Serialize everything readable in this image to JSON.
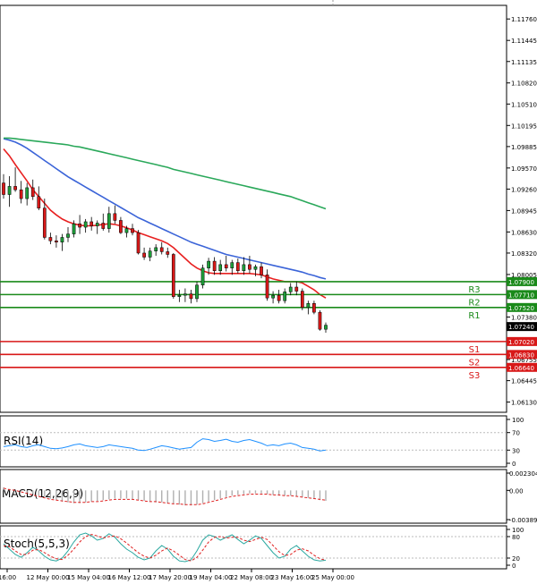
{
  "chart_data": {
    "type": "candlestick",
    "price_axis": {
      "ticks": [
        "1.11760",
        "1.11445",
        "1.11135",
        "1.10820",
        "1.10510",
        "1.10195",
        "1.09885",
        "1.09570",
        "1.09260",
        "1.08945",
        "1.08630",
        "1.08320",
        "1.08005",
        "1.07380",
        "1.06755",
        "1.06445",
        "1.06130"
      ],
      "tick_values": [
        1.1176,
        1.11445,
        1.11135,
        1.1082,
        1.1051,
        1.10195,
        1.09885,
        1.0957,
        1.0926,
        1.08945,
        1.0863,
        1.0832,
        1.08005,
        1.0738,
        1.06755,
        1.06445,
        1.0613
      ],
      "range": [
        1.0598,
        1.1196
      ]
    },
    "time_axis": {
      "labels": [
        "16:00",
        "12 May 00:00",
        "15 May 04:00",
        "16 May 12:00",
        "17 May 20:00",
        "19 May 04:00",
        "22 May 08:00",
        "23 May 16:00",
        "25 May 00:00"
      ]
    },
    "levels": [
      {
        "name": "R3",
        "value": 1.079,
        "label": "1.07900",
        "color": "#1a8a1a"
      },
      {
        "name": "R2",
        "value": 1.0771,
        "label": "1.07710",
        "color": "#1a8a1a"
      },
      {
        "name": "R1",
        "value": 1.0752,
        "label": "1.07520",
        "color": "#1a8a1a"
      },
      {
        "name": "S1",
        "value": 1.0702,
        "label": "1.07020",
        "color": "#d81818"
      },
      {
        "name": "S2",
        "value": 1.0683,
        "label": "1.06830",
        "color": "#d81818"
      },
      {
        "name": "S3",
        "value": 1.0664,
        "label": "1.06640",
        "color": "#d81818"
      }
    ],
    "current_price": {
      "value": 1.0724,
      "label": "1.07240"
    },
    "candles": [
      [
        1.0935,
        1.0948,
        1.0912,
        1.0918
      ],
      [
        1.0918,
        1.0945,
        1.09,
        1.093
      ],
      [
        1.093,
        1.0958,
        1.0922,
        1.0925
      ],
      [
        1.0925,
        1.0938,
        1.0905,
        1.0912
      ],
      [
        1.0912,
        1.0935,
        1.0902,
        1.0928
      ],
      [
        1.0928,
        1.094,
        1.091,
        1.0915
      ],
      [
        1.0915,
        1.093,
        1.0895,
        1.0898
      ],
      [
        1.0898,
        1.0912,
        1.0852,
        1.0855
      ],
      [
        1.0855,
        1.0862,
        1.0845,
        1.085
      ],
      [
        1.085,
        1.0858,
        1.084,
        1.0848
      ],
      [
        1.0848,
        1.086,
        1.0835,
        1.0855
      ],
      [
        1.0855,
        1.087,
        1.0848,
        1.086
      ],
      [
        1.086,
        1.088,
        1.0855,
        1.0875
      ],
      [
        1.0875,
        1.0888,
        1.086,
        1.087
      ],
      [
        1.087,
        1.0882,
        1.0862,
        1.0878
      ],
      [
        1.0878,
        1.0885,
        1.0865,
        1.0872
      ],
      [
        1.0872,
        1.088,
        1.086,
        1.0876
      ],
      [
        1.0876,
        1.089,
        1.0865,
        1.0868
      ],
      [
        1.0868,
        1.09,
        1.0862,
        1.089
      ],
      [
        1.089,
        1.0902,
        1.0875,
        1.088
      ],
      [
        1.088,
        1.0885,
        1.086,
        1.0862
      ],
      [
        1.0862,
        1.0872,
        1.0855,
        1.0868
      ],
      [
        1.0868,
        1.0875,
        1.0858,
        1.0862
      ],
      [
        1.0862,
        1.0866,
        1.083,
        1.0832
      ],
      [
        1.0832,
        1.084,
        1.0822,
        1.0826
      ],
      [
        1.0826,
        1.084,
        1.082,
        1.0835
      ],
      [
        1.0835,
        1.0845,
        1.0828,
        1.084
      ],
      [
        1.084,
        1.0848,
        1.083,
        1.0834
      ],
      [
        1.0834,
        1.084,
        1.0825,
        1.083
      ],
      [
        1.083,
        1.0832,
        1.0765,
        1.0768
      ],
      [
        1.0768,
        1.0778,
        1.076,
        1.077
      ],
      [
        1.077,
        1.078,
        1.076,
        1.0772
      ],
      [
        1.0772,
        1.0778,
        1.0758,
        1.0765
      ],
      [
        1.0765,
        1.079,
        1.076,
        1.0785
      ],
      [
        1.0785,
        1.0815,
        1.078,
        1.081
      ],
      [
        1.081,
        1.0825,
        1.08,
        1.082
      ],
      [
        1.082,
        1.0826,
        1.08,
        1.0806
      ],
      [
        1.0806,
        1.0822,
        1.08,
        1.0815
      ],
      [
        1.0815,
        1.0828,
        1.0805,
        1.081
      ],
      [
        1.081,
        1.0822,
        1.08,
        1.0818
      ],
      [
        1.0818,
        1.0824,
        1.0802,
        1.0806
      ],
      [
        1.0806,
        1.0826,
        1.08,
        1.0815
      ],
      [
        1.0815,
        1.0828,
        1.0802,
        1.0808
      ],
      [
        1.0808,
        1.0815,
        1.0798,
        1.0812
      ],
      [
        1.0812,
        1.0818,
        1.0795,
        1.08
      ],
      [
        1.08,
        1.0808,
        1.0762,
        1.0766
      ],
      [
        1.0766,
        1.0776,
        1.0758,
        1.077
      ],
      [
        1.077,
        1.0778,
        1.0758,
        1.0762
      ],
      [
        1.0762,
        1.078,
        1.0758,
        1.0775
      ],
      [
        1.0775,
        1.0788,
        1.077,
        1.0782
      ],
      [
        1.0782,
        1.079,
        1.077,
        1.0776
      ],
      [
        1.0776,
        1.078,
        1.0748,
        1.0752
      ],
      [
        1.0752,
        1.0762,
        1.0742,
        1.0758
      ],
      [
        1.0758,
        1.0762,
        1.0742,
        1.0745
      ],
      [
        1.0745,
        1.0748,
        1.0718,
        1.072
      ],
      [
        1.072,
        1.073,
        1.0715,
        1.0726
      ]
    ],
    "moving_averages": [
      {
        "color": "#e82020",
        "values": [
          1.0985,
          1.0975,
          1.0962,
          1.095,
          1.0938,
          1.0925,
          1.0915,
          1.0905,
          1.0895,
          1.0888,
          1.0882,
          1.0878,
          1.0875,
          1.0873,
          1.0872,
          1.0872,
          1.0873,
          1.0874,
          1.0875,
          1.0874,
          1.0872,
          1.0869,
          1.0866,
          1.0862,
          1.0859,
          1.0856,
          1.0853,
          1.085,
          1.0846,
          1.084,
          1.0832,
          1.0824,
          1.0816,
          1.081,
          1.0806,
          1.0803,
          1.0802,
          1.0802,
          1.0802,
          1.0802,
          1.0802,
          1.0802,
          1.0802,
          1.0801,
          1.08,
          1.0797,
          1.0794,
          1.0792,
          1.079,
          1.079,
          1.079,
          1.0788,
          1.0783,
          1.0778,
          1.0771,
          1.0766
        ]
      },
      {
        "color": "#3b64d8",
        "values": [
          1.1,
          1.0998,
          1.0995,
          1.0991,
          1.0986,
          1.098,
          1.0974,
          1.0968,
          1.0962,
          1.0956,
          1.095,
          1.0944,
          1.0939,
          1.0934,
          1.0929,
          1.0924,
          1.0919,
          1.0914,
          1.0909,
          1.0904,
          1.0899,
          1.0894,
          1.0889,
          1.0884,
          1.088,
          1.0876,
          1.0872,
          1.0868,
          1.0864,
          1.086,
          1.0856,
          1.0852,
          1.0848,
          1.0845,
          1.0842,
          1.0839,
          1.0836,
          1.0833,
          1.083,
          1.0828,
          1.0826,
          1.0824,
          1.0822,
          1.082,
          1.0818,
          1.0816,
          1.0814,
          1.0812,
          1.081,
          1.0808,
          1.0806,
          1.0804,
          1.0801,
          1.0799,
          1.0796,
          1.0794
        ]
      },
      {
        "color": "#2aa85a",
        "values": [
          1.1001,
          1.1001,
          1.1,
          1.0999,
          1.0998,
          1.0997,
          1.0996,
          1.0995,
          1.0994,
          1.0993,
          1.0992,
          1.0991,
          1.0989,
          1.0988,
          1.0986,
          1.0984,
          1.0982,
          1.098,
          1.0978,
          1.0976,
          1.0974,
          1.0972,
          1.097,
          1.0968,
          1.0966,
          1.0964,
          1.0962,
          1.096,
          1.0958,
          1.0955,
          1.0953,
          1.0951,
          1.0949,
          1.0947,
          1.0945,
          1.0943,
          1.0941,
          1.0939,
          1.0937,
          1.0935,
          1.0933,
          1.0931,
          1.0929,
          1.0927,
          1.0925,
          1.0923,
          1.0921,
          1.0919,
          1.0917,
          1.0915,
          1.0912,
          1.0909,
          1.0906,
          1.0903,
          1.09,
          1.0897
        ]
      }
    ],
    "rsi": {
      "label": "RSI(14)",
      "ticks": [
        "100",
        "70",
        "30",
        "0"
      ],
      "tick_values": [
        100,
        70,
        30,
        0
      ],
      "values": [
        38,
        40,
        42,
        38,
        36,
        40,
        42,
        38,
        34,
        33,
        35,
        38,
        42,
        44,
        40,
        38,
        36,
        38,
        42,
        40,
        38,
        36,
        34,
        30,
        29,
        32,
        36,
        40,
        38,
        35,
        32,
        34,
        36,
        48,
        56,
        54,
        50,
        52,
        55,
        50,
        48,
        52,
        54,
        50,
        46,
        40,
        42,
        40,
        44,
        46,
        42,
        36,
        34,
        32,
        28,
        30
      ]
    },
    "macd": {
      "label": "MACD(12,26,9)",
      "ticks": [
        "0.002304",
        "0.00",
        "-0.003897"
      ],
      "tick_values": [
        0.002304,
        0,
        -0.003897
      ],
      "histogram": [
        0.0004,
        0.0002,
        0.0001,
        -0.0001,
        -0.0003,
        -0.0005,
        -0.0007,
        -0.0009,
        -0.0011,
        -0.0013,
        -0.0015,
        -0.0016,
        -0.0017,
        -0.0017,
        -0.0016,
        -0.0015,
        -0.0014,
        -0.0013,
        -0.0012,
        -0.0011,
        -0.0011,
        -0.0011,
        -0.0012,
        -0.0013,
        -0.0014,
        -0.0015,
        -0.0016,
        -0.0016,
        -0.0017,
        -0.0018,
        -0.0019,
        -0.002,
        -0.002,
        -0.0019,
        -0.0017,
        -0.0015,
        -0.0013,
        -0.0011,
        -0.0009,
        -0.0007,
        -0.0006,
        -0.0005,
        -0.0004,
        -0.0004,
        -0.0004,
        -0.0005,
        -0.0006,
        -0.0007,
        -0.0007,
        -0.0007,
        -0.0008,
        -0.0009,
        -0.001,
        -0.0011,
        -0.0013,
        -0.0014
      ],
      "signal": [
        0.0003,
        0.0001,
        0.0,
        -0.0002,
        -0.0004,
        -0.0006,
        -0.0008,
        -0.001,
        -0.0012,
        -0.0013,
        -0.0014,
        -0.0015,
        -0.0016,
        -0.0016,
        -0.0016,
        -0.0015,
        -0.0015,
        -0.0014,
        -0.0013,
        -0.0012,
        -0.0012,
        -0.0012,
        -0.0012,
        -0.0013,
        -0.0014,
        -0.0015,
        -0.0015,
        -0.0016,
        -0.0017,
        -0.0018,
        -0.0018,
        -0.0019,
        -0.0019,
        -0.0019,
        -0.0018,
        -0.0016,
        -0.0014,
        -0.0012,
        -0.001,
        -0.0008,
        -0.0007,
        -0.0006,
        -0.0005,
        -0.0005,
        -0.0005,
        -0.0005,
        -0.0006,
        -0.0006,
        -0.0007,
        -0.0007,
        -0.0008,
        -0.0009,
        -0.001,
        -0.0011,
        -0.0012,
        -0.0013
      ]
    },
    "stoch": {
      "label": "Stoch(5,5,3)",
      "ticks": [
        "100",
        "80",
        "20",
        "0"
      ],
      "tick_values": [
        100,
        80,
        20,
        0
      ],
      "main": [
        60,
        45,
        30,
        22,
        35,
        50,
        40,
        25,
        15,
        12,
        20,
        40,
        65,
        85,
        90,
        82,
        70,
        75,
        88,
        78,
        60,
        45,
        35,
        22,
        15,
        20,
        40,
        55,
        45,
        25,
        12,
        10,
        15,
        40,
        70,
        85,
        80,
        70,
        78,
        85,
        72,
        60,
        70,
        82,
        75,
        55,
        35,
        20,
        25,
        45,
        55,
        40,
        25,
        15,
        12,
        14
      ],
      "signal": [
        55,
        52,
        40,
        30,
        30,
        42,
        44,
        35,
        25,
        18,
        16,
        28,
        45,
        65,
        80,
        86,
        82,
        76,
        80,
        82,
        74,
        62,
        48,
        35,
        25,
        20,
        28,
        40,
        48,
        40,
        28,
        16,
        12,
        22,
        42,
        65,
        78,
        80,
        76,
        78,
        78,
        70,
        66,
        72,
        78,
        72,
        55,
        38,
        27,
        30,
        42,
        46,
        40,
        28,
        18,
        14
      ]
    }
  }
}
